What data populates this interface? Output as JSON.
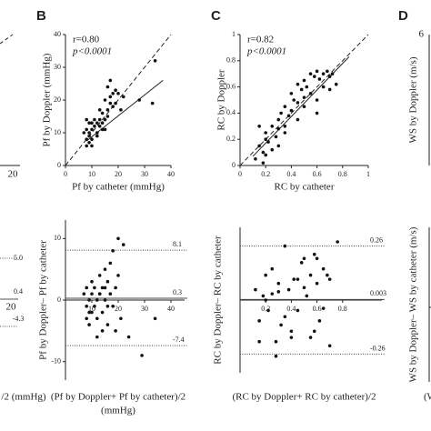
{
  "chart_data": [
    {
      "type": "scatter",
      "panel": "B",
      "xlabel": "Pf by catheter (mmHg)",
      "ylabel": "Pf by Doppler (mmHg)",
      "stat": "r=0.80",
      "pvalue": "p<0.0001",
      "xlim": [
        0,
        40
      ],
      "ylim": [
        0,
        40
      ],
      "xticks": [
        0,
        10,
        20,
        30,
        40
      ],
      "yticks": [
        0,
        10,
        20,
        30,
        40
      ],
      "identity": true,
      "fit": {
        "x": [
          8,
          37
        ],
        "y": [
          7.5,
          26
        ]
      },
      "x": [
        7,
        8,
        8,
        9,
        9,
        10,
        10,
        9,
        8,
        11,
        12,
        12,
        13,
        13,
        14,
        14,
        15,
        15,
        16,
        16,
        17,
        17,
        18,
        18,
        19,
        20,
        21,
        22,
        12,
        11,
        10,
        9,
        14,
        16,
        17,
        19,
        13,
        15,
        28,
        33,
        34,
        8,
        10
      ],
      "y": [
        10,
        8,
        6,
        7,
        9,
        8,
        11,
        10,
        11,
        12,
        10,
        13,
        12,
        14,
        13,
        16,
        14,
        20,
        17,
        24,
        26,
        19,
        22,
        18,
        23,
        22,
        17,
        21,
        9,
        14,
        6,
        13,
        11,
        15,
        21,
        19,
        17,
        11,
        20,
        19,
        32,
        14,
        13
      ]
    },
    {
      "type": "scatter",
      "panel": "C",
      "xlabel": "RC by catheter",
      "ylabel": "RC by Doppler",
      "stat": "r=0.82",
      "pvalue": "p<0.0001",
      "xlim": [
        0,
        1
      ],
      "ylim": [
        0,
        1
      ],
      "xticks": [
        0,
        0.2,
        0.4,
        0.6,
        0.8,
        1
      ],
      "yticks": [
        0,
        0.2,
        0.4,
        0.6,
        0.8,
        1
      ],
      "identity": true,
      "fit": {
        "x": [
          0.1,
          0.85
        ],
        "y": [
          0.07,
          0.83
        ]
      },
      "x": [
        0.12,
        0.15,
        0.18,
        0.2,
        0.2,
        0.22,
        0.25,
        0.25,
        0.28,
        0.3,
        0.3,
        0.32,
        0.35,
        0.35,
        0.38,
        0.4,
        0.4,
        0.42,
        0.45,
        0.45,
        0.48,
        0.5,
        0.5,
        0.52,
        0.55,
        0.55,
        0.58,
        0.6,
        0.6,
        0.62,
        0.65,
        0.65,
        0.68,
        0.7,
        0.7,
        0.72,
        0.75,
        0.15,
        0.18,
        0.3,
        0.45,
        0.6,
        0.2,
        0.35,
        0.5
      ],
      "y": [
        0.05,
        0.15,
        0.1,
        0.2,
        0.25,
        0.18,
        0.3,
        0.12,
        0.22,
        0.35,
        0.28,
        0.4,
        0.3,
        0.45,
        0.38,
        0.42,
        0.55,
        0.5,
        0.48,
        0.62,
        0.58,
        0.45,
        0.65,
        0.6,
        0.55,
        0.7,
        0.68,
        0.72,
        0.5,
        0.66,
        0.7,
        0.6,
        0.72,
        0.58,
        0.68,
        0.7,
        0.62,
        0.3,
        0.02,
        0.15,
        0.35,
        0.4,
        0.08,
        0.25,
        0.52
      ]
    },
    {
      "type": "bland-altman",
      "xlabel": "(Pf by Doppler+ Pf by catheter)/2",
      "xunit": "(mmHg)",
      "ylabel": "Pf by Doppler– Pf by catheter",
      "xlim": [
        0,
        40
      ],
      "ylim": [
        -13,
        13
      ],
      "xticks": [
        10,
        20,
        30,
        40
      ],
      "yticks": [
        -10,
        0,
        10
      ],
      "limits": [
        8.1,
        0.3,
        -7.4
      ],
      "x": [
        7,
        8,
        8,
        9,
        9,
        10,
        10,
        11,
        11,
        12,
        12,
        13,
        13,
        14,
        14,
        15,
        15,
        16,
        16,
        17,
        17,
        18,
        18,
        19,
        19,
        20,
        20,
        21,
        22,
        12,
        10,
        9,
        14,
        16,
        24,
        29,
        34,
        8,
        13,
        15
      ],
      "y": [
        1,
        -1,
        2,
        0,
        -2,
        1,
        3,
        -1,
        2,
        0,
        -3,
        1,
        4,
        -2,
        2,
        0,
        5,
        -4,
        3,
        1,
        6,
        -1,
        8,
        2,
        -5,
        4,
        10,
        -3,
        9,
        -6,
        -2,
        -4,
        -5,
        -1,
        -6,
        -9,
        -3,
        -3,
        1,
        2
      ]
    },
    {
      "type": "bland-altman",
      "xlabel": "(RC by Doppler+ RC by catheter)/2",
      "ylabel": "RC by Doppler– RC by catheter",
      "xlim": [
        0,
        1
      ],
      "ylim": [
        -0.35,
        0.35
      ],
      "xticks": [
        0.2,
        0.4,
        0.6,
        0.8
      ],
      "yticks": [],
      "limits": [
        0.26,
        0.003,
        -0.26
      ],
      "x": [
        0.12,
        0.15,
        0.18,
        0.2,
        0.22,
        0.25,
        0.28,
        0.3,
        0.32,
        0.35,
        0.38,
        0.4,
        0.42,
        0.45,
        0.48,
        0.5,
        0.52,
        0.55,
        0.58,
        0.6,
        0.62,
        0.65,
        0.68,
        0.7,
        0.15,
        0.25,
        0.35,
        0.45,
        0.55,
        0.65,
        0.2,
        0.3,
        0.4,
        0.5,
        0.6,
        0.7,
        0.76,
        0.28,
        0.58
      ],
      "y": [
        0.05,
        -0.1,
        0.02,
        0.12,
        -0.05,
        0.15,
        -0.2,
        0.08,
        -0.12,
        0.26,
        0.05,
        -0.15,
        0.1,
        -0.05,
        0.18,
        0.2,
        0.02,
        -0.18,
        0.22,
        0.08,
        -0.1,
        0.15,
        0.12,
        -0.22,
        -0.2,
        0.03,
        -0.08,
        0.1,
        0.12,
        -0.04,
        0.0,
        0.04,
        -0.18,
        0.06,
        0.2,
        0.1,
        0.28,
        -0.27,
        -0.15
      ]
    },
    {
      "type": "fragments",
      "texts": [
        "20",
        "5.0",
        "0.4",
        "-4.3",
        "20",
        "/2 (mmHg)",
        "D",
        "6",
        "WS by Doppler (m/s)",
        "WS by Doppler– WS by catheter (m/s)",
        "(W"
      ]
    }
  ]
}
